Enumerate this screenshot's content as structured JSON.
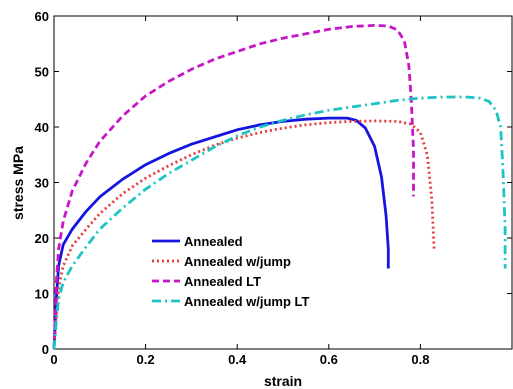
{
  "chart_data": {
    "type": "line",
    "title": "",
    "xlabel": "strain",
    "ylabel": "stress MPa",
    "xlim": [
      0,
      1.0
    ],
    "ylim": [
      0,
      60
    ],
    "xticks": [
      0,
      0.2,
      0.4,
      0.6,
      0.8
    ],
    "xtick_labels": [
      "0",
      "0.2",
      "0.4",
      "0.6",
      "0.8"
    ],
    "yticks": [
      0,
      10,
      20,
      30,
      40,
      50,
      60
    ],
    "ytick_labels": [
      "0",
      "10",
      "20",
      "30",
      "40",
      "50",
      "60"
    ],
    "grid": false,
    "legend_position": "lower-left",
    "series": [
      {
        "name": "Annealed",
        "color": "#1515e0",
        "dash": "solid",
        "x": [
          0.0,
          0.005,
          0.01,
          0.02,
          0.04,
          0.07,
          0.1,
          0.15,
          0.2,
          0.25,
          0.3,
          0.35,
          0.4,
          0.45,
          0.5,
          0.55,
          0.6,
          0.64,
          0.66,
          0.68,
          0.7,
          0.715,
          0.725,
          0.73,
          0.73
        ],
        "y": [
          0.0,
          9.0,
          15.0,
          18.8,
          21.6,
          24.8,
          27.4,
          30.6,
          33.2,
          35.2,
          36.9,
          38.2,
          39.5,
          40.4,
          41.0,
          41.4,
          41.6,
          41.6,
          41.2,
          39.8,
          36.5,
          31.0,
          24.0,
          18.0,
          14.5
        ]
      },
      {
        "name": "Annealed w/jump",
        "color": "#e83a3a",
        "dash": "dot",
        "x": [
          0.0,
          0.005,
          0.01,
          0.02,
          0.04,
          0.07,
          0.1,
          0.15,
          0.2,
          0.25,
          0.3,
          0.35,
          0.4,
          0.45,
          0.5,
          0.55,
          0.6,
          0.65,
          0.7,
          0.75,
          0.78,
          0.8,
          0.815,
          0.825,
          0.83
        ],
        "y": [
          0.0,
          6.0,
          11.0,
          15.0,
          18.6,
          21.6,
          24.4,
          28.0,
          30.8,
          33.0,
          35.0,
          36.7,
          38.0,
          39.0,
          39.8,
          40.4,
          40.8,
          41.0,
          41.1,
          41.0,
          40.5,
          39.0,
          35.0,
          27.0,
          18.0
        ]
      },
      {
        "name": "Annealed LT",
        "color": "#c716c7",
        "dash": "dash",
        "x": [
          0.0,
          0.005,
          0.01,
          0.02,
          0.04,
          0.07,
          0.1,
          0.15,
          0.2,
          0.25,
          0.3,
          0.35,
          0.4,
          0.45,
          0.5,
          0.55,
          0.6,
          0.65,
          0.7,
          0.73,
          0.75,
          0.765,
          0.775,
          0.78,
          0.785,
          0.785
        ],
        "y": [
          0.0,
          12.0,
          18.0,
          23.0,
          28.5,
          33.5,
          37.4,
          42.0,
          45.6,
          48.2,
          50.4,
          52.2,
          53.6,
          55.0,
          56.0,
          56.8,
          57.6,
          58.1,
          58.3,
          58.2,
          57.5,
          55.5,
          51.0,
          45.0,
          36.0,
          27.5
        ]
      },
      {
        "name": "Annealed w/jump LT",
        "color": "#1cc4c4",
        "dash": "dashdot",
        "x": [
          0.0,
          0.005,
          0.01,
          0.02,
          0.04,
          0.07,
          0.1,
          0.15,
          0.2,
          0.25,
          0.3,
          0.35,
          0.4,
          0.45,
          0.5,
          0.55,
          0.6,
          0.65,
          0.7,
          0.75,
          0.8,
          0.85,
          0.9,
          0.93,
          0.95,
          0.965,
          0.975,
          0.98,
          0.985,
          0.985
        ],
        "y": [
          0.0,
          5.0,
          9.0,
          12.0,
          15.0,
          18.4,
          21.6,
          25.4,
          28.8,
          31.6,
          34.0,
          36.4,
          38.4,
          40.0,
          41.2,
          42.2,
          43.0,
          43.6,
          44.2,
          44.8,
          45.2,
          45.4,
          45.4,
          45.2,
          44.6,
          43.0,
          40.0,
          33.0,
          22.0,
          14.5
        ]
      }
    ]
  }
}
